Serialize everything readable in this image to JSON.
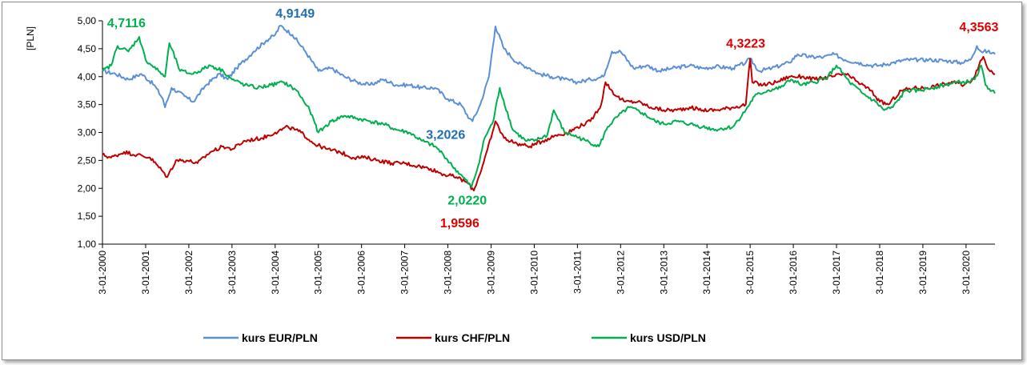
{
  "chart_data": {
    "type": "line",
    "title": "",
    "ylabel": "[PLN]",
    "xlabel": "",
    "ylim": [
      1.0,
      5.0
    ],
    "yticks": [
      "1,00",
      "1,50",
      "2,00",
      "2,50",
      "3,00",
      "3,50",
      "4,00",
      "4,50",
      "5,00"
    ],
    "xtick_labels": [
      "3-01-2000",
      "3-01-2001",
      "3-01-2002",
      "3-01-2003",
      "3-01-2004",
      "3-01-2005",
      "3-01-2006",
      "3-01-2007",
      "3-01-2008",
      "3-01-2009",
      "3-01-2010",
      "3-01-2011",
      "3-01-2012",
      "3-01-2013",
      "3-01-2014",
      "3-01-2015",
      "3-01-2016",
      "3-01-2017",
      "3-01-2018",
      "3-01-2019",
      "3-01-2020"
    ],
    "x_start_year": 2000.0,
    "x_end_year": 2020.67,
    "grid": false,
    "legend_position": "bottom",
    "series": [
      {
        "name": "kurs  EUR/PLN",
        "color": "#5B8FD6",
        "points": [
          [
            2000.0,
            4.1
          ],
          [
            2000.3,
            4.05
          ],
          [
            2000.6,
            3.95
          ],
          [
            2000.9,
            4.05
          ],
          [
            2001.2,
            3.85
          ],
          [
            2001.4,
            3.6
          ],
          [
            2001.45,
            3.45
          ],
          [
            2001.6,
            3.8
          ],
          [
            2001.9,
            3.65
          ],
          [
            2002.1,
            3.55
          ],
          [
            2002.4,
            3.85
          ],
          [
            2002.7,
            4.05
          ],
          [
            2002.9,
            3.95
          ],
          [
            2003.1,
            4.15
          ],
          [
            2003.5,
            4.45
          ],
          [
            2003.8,
            4.65
          ],
          [
            2004.0,
            4.75
          ],
          [
            2004.12,
            4.9149
          ],
          [
            2004.4,
            4.75
          ],
          [
            2004.7,
            4.45
          ],
          [
            2005.0,
            4.1
          ],
          [
            2005.3,
            4.15
          ],
          [
            2005.6,
            4.0
          ],
          [
            2005.9,
            3.9
          ],
          [
            2006.2,
            3.85
          ],
          [
            2006.5,
            3.95
          ],
          [
            2006.8,
            3.85
          ],
          [
            2007.1,
            3.85
          ],
          [
            2007.4,
            3.8
          ],
          [
            2007.7,
            3.8
          ],
          [
            2008.0,
            3.6
          ],
          [
            2008.3,
            3.5
          ],
          [
            2008.5,
            3.25
          ],
          [
            2008.57,
            3.2026
          ],
          [
            2008.75,
            3.5
          ],
          [
            2008.95,
            4.0
          ],
          [
            2009.1,
            4.9
          ],
          [
            2009.3,
            4.5
          ],
          [
            2009.6,
            4.25
          ],
          [
            2009.9,
            4.15
          ],
          [
            2010.1,
            4.05
          ],
          [
            2010.4,
            4.0
          ],
          [
            2010.7,
            3.95
          ],
          [
            2011.0,
            3.9
          ],
          [
            2011.3,
            3.95
          ],
          [
            2011.6,
            4.0
          ],
          [
            2011.8,
            4.45
          ],
          [
            2012.0,
            4.45
          ],
          [
            2012.3,
            4.15
          ],
          [
            2012.6,
            4.2
          ],
          [
            2012.9,
            4.1
          ],
          [
            2013.2,
            4.15
          ],
          [
            2013.6,
            4.2
          ],
          [
            2013.9,
            4.15
          ],
          [
            2014.2,
            4.18
          ],
          [
            2014.6,
            4.15
          ],
          [
            2014.9,
            4.25
          ],
          [
            2015.0,
            4.3223
          ],
          [
            2015.2,
            4.1
          ],
          [
            2015.5,
            4.15
          ],
          [
            2015.9,
            4.25
          ],
          [
            2016.1,
            4.4
          ],
          [
            2016.4,
            4.35
          ],
          [
            2016.7,
            4.35
          ],
          [
            2016.95,
            4.4
          ],
          [
            2017.2,
            4.3
          ],
          [
            2017.5,
            4.25
          ],
          [
            2017.8,
            4.2
          ],
          [
            2018.0,
            4.2
          ],
          [
            2018.3,
            4.25
          ],
          [
            2018.6,
            4.3
          ],
          [
            2018.9,
            4.3
          ],
          [
            2019.2,
            4.3
          ],
          [
            2019.6,
            4.28
          ],
          [
            2019.9,
            4.25
          ],
          [
            2020.1,
            4.3
          ],
          [
            2020.25,
            4.55
          ],
          [
            2020.35,
            4.45
          ],
          [
            2020.5,
            4.45
          ],
          [
            2020.67,
            4.4
          ]
        ]
      },
      {
        "name": "kurs  CHF/PLN",
        "color": "#C00000",
        "points": [
          [
            2000.0,
            2.6
          ],
          [
            2000.2,
            2.55
          ],
          [
            2000.5,
            2.65
          ],
          [
            2000.8,
            2.6
          ],
          [
            2001.1,
            2.55
          ],
          [
            2001.4,
            2.3
          ],
          [
            2001.5,
            2.2
          ],
          [
            2001.7,
            2.5
          ],
          [
            2001.95,
            2.5
          ],
          [
            2002.2,
            2.45
          ],
          [
            2002.5,
            2.65
          ],
          [
            2002.8,
            2.75
          ],
          [
            2003.0,
            2.7
          ],
          [
            2003.3,
            2.85
          ],
          [
            2003.7,
            2.9
          ],
          [
            2004.0,
            3.0
          ],
          [
            2004.3,
            3.1
          ],
          [
            2004.6,
            3.0
          ],
          [
            2004.9,
            2.8
          ],
          [
            2005.2,
            2.7
          ],
          [
            2005.5,
            2.65
          ],
          [
            2005.8,
            2.55
          ],
          [
            2006.1,
            2.55
          ],
          [
            2006.4,
            2.5
          ],
          [
            2006.7,
            2.45
          ],
          [
            2007.0,
            2.45
          ],
          [
            2007.3,
            2.4
          ],
          [
            2007.6,
            2.35
          ],
          [
            2007.9,
            2.25
          ],
          [
            2008.2,
            2.2
          ],
          [
            2008.45,
            2.1
          ],
          [
            2008.6,
            1.9596
          ],
          [
            2008.8,
            2.4
          ],
          [
            2009.0,
            2.9
          ],
          [
            2009.1,
            3.2
          ],
          [
            2009.3,
            2.9
          ],
          [
            2009.6,
            2.8
          ],
          [
            2009.9,
            2.75
          ],
          [
            2010.2,
            2.85
          ],
          [
            2010.5,
            2.95
          ],
          [
            2010.8,
            3.0
          ],
          [
            2011.0,
            3.1
          ],
          [
            2011.3,
            3.2
          ],
          [
            2011.55,
            3.5
          ],
          [
            2011.65,
            3.9
          ],
          [
            2011.9,
            3.65
          ],
          [
            2012.1,
            3.55
          ],
          [
            2012.4,
            3.55
          ],
          [
            2012.7,
            3.45
          ],
          [
            2013.0,
            3.4
          ],
          [
            2013.3,
            3.4
          ],
          [
            2013.6,
            3.45
          ],
          [
            2013.9,
            3.4
          ],
          [
            2014.2,
            3.4
          ],
          [
            2014.6,
            3.45
          ],
          [
            2014.9,
            3.5
          ],
          [
            2015.0,
            4.3223
          ],
          [
            2015.05,
            3.9
          ],
          [
            2015.3,
            3.85
          ],
          [
            2015.6,
            3.9
          ],
          [
            2015.9,
            4.0
          ],
          [
            2016.2,
            4.0
          ],
          [
            2016.5,
            3.95
          ],
          [
            2016.9,
            4.0
          ],
          [
            2017.2,
            4.05
          ],
          [
            2017.5,
            3.9
          ],
          [
            2017.8,
            3.75
          ],
          [
            2018.0,
            3.55
          ],
          [
            2018.2,
            3.5
          ],
          [
            2018.5,
            3.75
          ],
          [
            2018.8,
            3.8
          ],
          [
            2019.1,
            3.8
          ],
          [
            2019.4,
            3.85
          ],
          [
            2019.7,
            3.9
          ],
          [
            2019.95,
            3.85
          ],
          [
            2020.15,
            3.95
          ],
          [
            2020.3,
            4.2
          ],
          [
            2020.4,
            4.3563
          ],
          [
            2020.5,
            4.15
          ],
          [
            2020.67,
            4.05
          ]
        ]
      },
      {
        "name": "kurs  USD/PLN",
        "color": "#00B050",
        "points": [
          [
            2000.0,
            4.1
          ],
          [
            2000.2,
            4.2
          ],
          [
            2000.35,
            4.55
          ],
          [
            2000.6,
            4.45
          ],
          [
            2000.85,
            4.7116
          ],
          [
            2001.0,
            4.3
          ],
          [
            2001.3,
            4.1
          ],
          [
            2001.45,
            4.0
          ],
          [
            2001.55,
            4.6
          ],
          [
            2001.8,
            4.1
          ],
          [
            2002.1,
            4.05
          ],
          [
            2002.5,
            4.2
          ],
          [
            2002.8,
            4.1
          ],
          [
            2003.0,
            3.95
          ],
          [
            2003.3,
            3.85
          ],
          [
            2003.6,
            3.8
          ],
          [
            2003.9,
            3.85
          ],
          [
            2004.2,
            3.9
          ],
          [
            2004.5,
            3.75
          ],
          [
            2004.8,
            3.4
          ],
          [
            2005.0,
            3.0
          ],
          [
            2005.3,
            3.2
          ],
          [
            2005.6,
            3.3
          ],
          [
            2005.9,
            3.25
          ],
          [
            2006.2,
            3.2
          ],
          [
            2006.5,
            3.15
          ],
          [
            2006.8,
            3.05
          ],
          [
            2007.1,
            3.0
          ],
          [
            2007.4,
            2.85
          ],
          [
            2007.7,
            2.75
          ],
          [
            2007.9,
            2.6
          ],
          [
            2008.1,
            2.4
          ],
          [
            2008.35,
            2.2
          ],
          [
            2008.55,
            2.022
          ],
          [
            2008.7,
            2.4
          ],
          [
            2008.85,
            2.9
          ],
          [
            2009.05,
            3.2
          ],
          [
            2009.2,
            3.8
          ],
          [
            2009.5,
            3.05
          ],
          [
            2009.8,
            2.85
          ],
          [
            2010.0,
            2.85
          ],
          [
            2010.3,
            2.95
          ],
          [
            2010.45,
            3.4
          ],
          [
            2010.7,
            3.0
          ],
          [
            2010.9,
            2.95
          ],
          [
            2011.2,
            2.85
          ],
          [
            2011.5,
            2.75
          ],
          [
            2011.7,
            3.1
          ],
          [
            2011.95,
            3.3
          ],
          [
            2012.2,
            3.45
          ],
          [
            2012.5,
            3.35
          ],
          [
            2012.8,
            3.2
          ],
          [
            2013.0,
            3.15
          ],
          [
            2013.3,
            3.2
          ],
          [
            2013.6,
            3.15
          ],
          [
            2013.9,
            3.1
          ],
          [
            2014.2,
            3.05
          ],
          [
            2014.6,
            3.1
          ],
          [
            2014.9,
            3.4
          ],
          [
            2015.1,
            3.65
          ],
          [
            2015.4,
            3.75
          ],
          [
            2015.7,
            3.8
          ],
          [
            2015.95,
            3.95
          ],
          [
            2016.2,
            3.85
          ],
          [
            2016.5,
            3.9
          ],
          [
            2016.8,
            4.0
          ],
          [
            2017.0,
            4.2
          ],
          [
            2017.3,
            3.9
          ],
          [
            2017.6,
            3.7
          ],
          [
            2017.9,
            3.55
          ],
          [
            2018.1,
            3.4
          ],
          [
            2018.3,
            3.45
          ],
          [
            2018.6,
            3.75
          ],
          [
            2018.9,
            3.75
          ],
          [
            2019.2,
            3.8
          ],
          [
            2019.5,
            3.85
          ],
          [
            2019.8,
            3.9
          ],
          [
            2020.0,
            3.9
          ],
          [
            2020.2,
            3.95
          ],
          [
            2020.35,
            4.2
          ],
          [
            2020.45,
            3.85
          ],
          [
            2020.6,
            3.75
          ],
          [
            2020.67,
            3.7
          ]
        ]
      }
    ],
    "annotations": [
      {
        "text": "4,7116",
        "x": 2000.85,
        "y": 4.7116,
        "color": "#00B050",
        "anchor": "above-left"
      },
      {
        "text": "4,9149",
        "x": 2004.12,
        "y": 4.9149,
        "color": "#1F6FB2",
        "anchor": "above-right"
      },
      {
        "text": "3,2026",
        "x": 2008.57,
        "y": 3.2026,
        "color": "#1F6FB2",
        "anchor": "left"
      },
      {
        "text": "2,0220",
        "x": 2008.55,
        "y": 2.022,
        "color": "#00B050",
        "anchor": "below"
      },
      {
        "text": "1,9596",
        "x": 2008.6,
        "y": 1.9596,
        "color": "#E00000",
        "anchor": "below-far"
      },
      {
        "text": "4,3223",
        "x": 2015.0,
        "y": 4.3223,
        "color": "#E00000",
        "anchor": "above",
        "bold": false
      },
      {
        "text": "4,3563",
        "x": 2020.4,
        "y": 4.3563,
        "color": "#E00000",
        "anchor": "above-high"
      }
    ]
  }
}
